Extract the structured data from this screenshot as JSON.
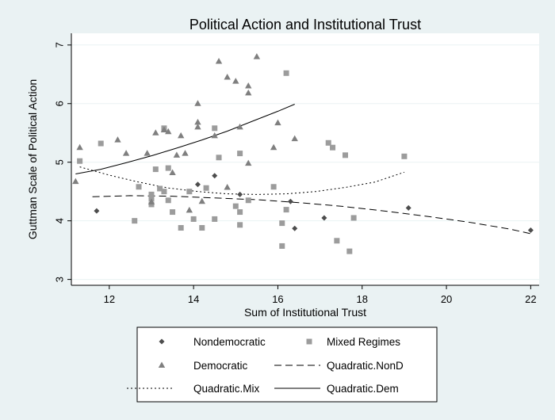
{
  "chart_data": {
    "type": "scatter",
    "title": "Political Action and Institutional Trust",
    "xlabel": "Sum of Institutional Trust",
    "ylabel": "Guttman Scale of Political Action",
    "xlim": [
      11.1,
      22.2
    ],
    "ylim": [
      2.9,
      7.2
    ],
    "xticks": [
      12,
      14,
      16,
      18,
      20,
      22
    ],
    "yticks": [
      3,
      4,
      5,
      6,
      7
    ],
    "grid": "horizontal",
    "legend_position": "bottom",
    "series": [
      {
        "name": "Nondemocratic",
        "marker": "diamond",
        "color": "#4d4d4d",
        "points": [
          [
            11.7,
            4.17
          ],
          [
            14.1,
            4.62
          ],
          [
            14.5,
            4.77
          ],
          [
            15.1,
            4.45
          ],
          [
            16.3,
            4.33
          ],
          [
            16.4,
            3.87
          ],
          [
            17.1,
            4.05
          ],
          [
            19.1,
            4.22
          ],
          [
            22.0,
            3.84
          ]
        ]
      },
      {
        "name": "Mixed Regimes",
        "marker": "square",
        "color": "#9c9c9c",
        "points": [
          [
            11.3,
            5.02
          ],
          [
            11.8,
            5.32
          ],
          [
            12.6,
            4.0
          ],
          [
            12.7,
            4.58
          ],
          [
            13.0,
            4.45
          ],
          [
            13.0,
            4.38
          ],
          [
            13.0,
            4.28
          ],
          [
            13.1,
            4.88
          ],
          [
            13.2,
            4.55
          ],
          [
            13.3,
            5.58
          ],
          [
            13.3,
            4.5
          ],
          [
            13.4,
            4.35
          ],
          [
            13.4,
            4.9
          ],
          [
            13.5,
            4.15
          ],
          [
            13.7,
            3.88
          ],
          [
            13.9,
            4.5
          ],
          [
            14.0,
            4.03
          ],
          [
            14.2,
            3.88
          ],
          [
            14.3,
            4.56
          ],
          [
            14.5,
            5.58
          ],
          [
            14.5,
            4.03
          ],
          [
            14.6,
            5.08
          ],
          [
            15.0,
            4.25
          ],
          [
            15.1,
            4.15
          ],
          [
            15.1,
            3.93
          ],
          [
            15.1,
            5.15
          ],
          [
            15.3,
            4.35
          ],
          [
            15.9,
            4.58
          ],
          [
            16.1,
            3.57
          ],
          [
            16.1,
            3.96
          ],
          [
            16.2,
            4.19
          ],
          [
            16.2,
            6.52
          ],
          [
            17.2,
            5.33
          ],
          [
            17.3,
            5.25
          ],
          [
            17.4,
            3.66
          ],
          [
            17.6,
            5.12
          ],
          [
            17.7,
            3.48
          ],
          [
            17.8,
            4.05
          ],
          [
            19.0,
            5.1
          ]
        ]
      },
      {
        "name": "Democratic",
        "marker": "triangle",
        "color": "#7f7f7f",
        "points": [
          [
            11.2,
            4.67
          ],
          [
            11.3,
            5.25
          ],
          [
            12.2,
            5.38
          ],
          [
            12.4,
            5.15
          ],
          [
            12.9,
            5.15
          ],
          [
            13.0,
            4.32
          ],
          [
            13.1,
            5.5
          ],
          [
            13.3,
            5.55
          ],
          [
            13.4,
            5.52
          ],
          [
            13.5,
            4.82
          ],
          [
            13.6,
            5.12
          ],
          [
            13.7,
            5.45
          ],
          [
            13.8,
            5.15
          ],
          [
            13.9,
            4.18
          ],
          [
            14.1,
            6.0
          ],
          [
            14.1,
            5.68
          ],
          [
            14.1,
            5.6
          ],
          [
            14.2,
            4.33
          ],
          [
            14.5,
            5.45
          ],
          [
            14.6,
            6.72
          ],
          [
            14.8,
            4.57
          ],
          [
            14.8,
            6.45
          ],
          [
            15.0,
            6.38
          ],
          [
            15.1,
            5.6
          ],
          [
            15.3,
            6.3
          ],
          [
            15.3,
            6.18
          ],
          [
            15.3,
            4.98
          ],
          [
            15.5,
            6.8
          ],
          [
            15.9,
            5.25
          ],
          [
            16.0,
            5.67
          ],
          [
            16.4,
            5.4
          ]
        ]
      },
      {
        "name": "Quadratic.NonD",
        "line": "dashed",
        "color": "#000000",
        "curve": [
          [
            11.6,
            4.41
          ],
          [
            12.5,
            4.43
          ],
          [
            13.5,
            4.42
          ],
          [
            14.5,
            4.39
          ],
          [
            15.5,
            4.36
          ],
          [
            16.5,
            4.31
          ],
          [
            17.5,
            4.25
          ],
          [
            18.5,
            4.17
          ],
          [
            19.5,
            4.08
          ],
          [
            20.5,
            3.98
          ],
          [
            21.5,
            3.86
          ],
          [
            22.0,
            3.78
          ]
        ]
      },
      {
        "name": "Quadratic.Mix",
        "line": "dotted",
        "color": "#000000",
        "curve": [
          [
            11.3,
            4.92
          ],
          [
            12.0,
            4.78
          ],
          [
            12.7,
            4.66
          ],
          [
            13.4,
            4.56
          ],
          [
            14.1,
            4.5
          ],
          [
            14.8,
            4.46
          ],
          [
            15.5,
            4.45
          ],
          [
            16.2,
            4.46
          ],
          [
            16.9,
            4.5
          ],
          [
            17.6,
            4.57
          ],
          [
            18.3,
            4.66
          ],
          [
            19.0,
            4.83
          ]
        ]
      },
      {
        "name": "Quadratic.Dem",
        "line": "solid",
        "color": "#000000",
        "curve": [
          [
            11.2,
            4.8
          ],
          [
            11.8,
            4.88
          ],
          [
            12.4,
            4.99
          ],
          [
            13.0,
            5.11
          ],
          [
            13.6,
            5.24
          ],
          [
            14.2,
            5.38
          ],
          [
            14.8,
            5.53
          ],
          [
            15.4,
            5.7
          ],
          [
            16.0,
            5.87
          ],
          [
            16.4,
            5.99
          ]
        ]
      }
    ]
  }
}
